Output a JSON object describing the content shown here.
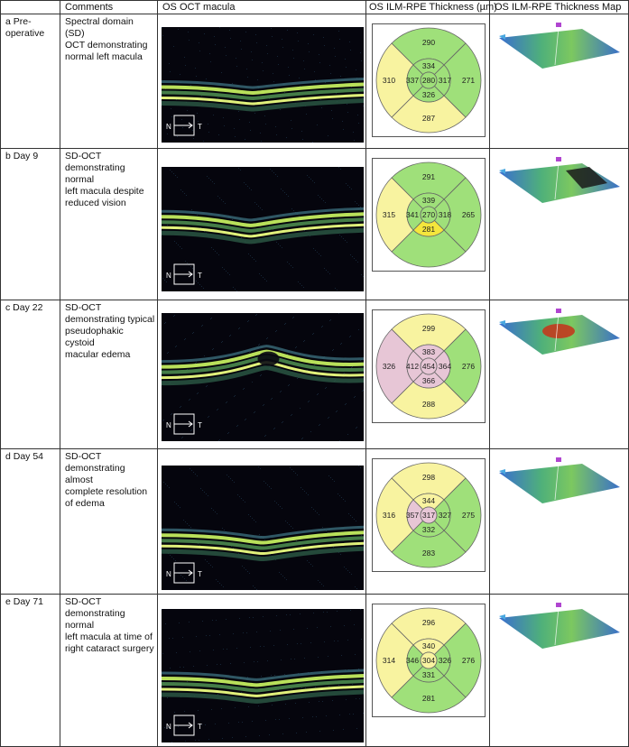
{
  "headers": {
    "comments": "Comments",
    "oct": "OS OCT macula",
    "thickness": "OS ILM-RPE Thickness (µm)",
    "map": "OS ILM-RPE Thickness Map"
  },
  "colors": {
    "normal": "#9fe07a",
    "thin": "#f8f3a0",
    "thick": "#e7c6d6",
    "borderline": "#f4e63c"
  },
  "orientation": {
    "n": "N",
    "t": "T"
  },
  "rows": [
    {
      "label": "a  Pre-\noperative",
      "comment": "Spectral domain (SD)\nOCT demonstrating\nnormal left macula",
      "etdrs": {
        "center": 280,
        "si": 334,
        "ti": 317,
        "ii": 326,
        "ni": 337,
        "so": 290,
        "to": 271,
        "io": 287,
        "no": 310
      },
      "zone_colors": {
        "center": "normal",
        "si": "normal",
        "ti": "normal",
        "ii": "normal",
        "ni": "normal",
        "so": "normal",
        "to": "normal",
        "io": "thin",
        "no": "thin"
      }
    },
    {
      "label": "b  Day 9",
      "comment": "SD-OCT\ndemonstrating normal\nleft macula despite\nreduced vision",
      "etdrs": {
        "center": 270,
        "si": 339,
        "ti": 318,
        "ii": 281,
        "ni": 341,
        "so": 291,
        "to": 265,
        "io": "",
        "no": 315
      },
      "zone_colors": {
        "center": "normal",
        "si": "normal",
        "ti": "normal",
        "ii": "borderline",
        "ni": "normal",
        "so": "normal",
        "to": "normal",
        "io": "normal",
        "no": "thin"
      }
    },
    {
      "label": "c  Day 22",
      "comment": "SD-OCT\ndemonstrating typical\npseudophakic cystoid\nmacular edema",
      "etdrs": {
        "center": 454,
        "si": 383,
        "ti": 364,
        "ii": 366,
        "ni": 412,
        "so": 299,
        "to": 276,
        "io": 288,
        "no": 326
      },
      "zone_colors": {
        "center": "thick",
        "si": "thick",
        "ti": "thick",
        "ii": "thick",
        "ni": "thick",
        "so": "thin",
        "to": "normal",
        "io": "thin",
        "no": "thick"
      }
    },
    {
      "label": "d  Day 54",
      "comment": "SD-OCT\ndemonstrating almost\ncomplete resolution\nof edema",
      "etdrs": {
        "center": 317,
        "si": 344,
        "ti": 327,
        "ii": 332,
        "ni": 357,
        "so": 298,
        "to": 275,
        "io": 283,
        "no": 316
      },
      "zone_colors": {
        "center": "thick",
        "si": "thin",
        "ti": "normal",
        "ii": "normal",
        "ni": "thick",
        "so": "thin",
        "to": "normal",
        "io": "normal",
        "no": "thin"
      }
    },
    {
      "label": "e  Day 71",
      "comment": "SD-OCT\ndemonstrating normal\nleft macula at time of\nright cataract surgery",
      "etdrs": {
        "center": 304,
        "si": 340,
        "ti": 326,
        "ii": 331,
        "ni": 346,
        "so": 296,
        "to": 276,
        "io": 281,
        "no": 314
      },
      "zone_colors": {
        "center": "thin",
        "si": "thin",
        "ti": "normal",
        "ii": "normal",
        "ni": "normal",
        "so": "thin",
        "to": "normal",
        "io": "normal",
        "no": "thin"
      }
    }
  ]
}
